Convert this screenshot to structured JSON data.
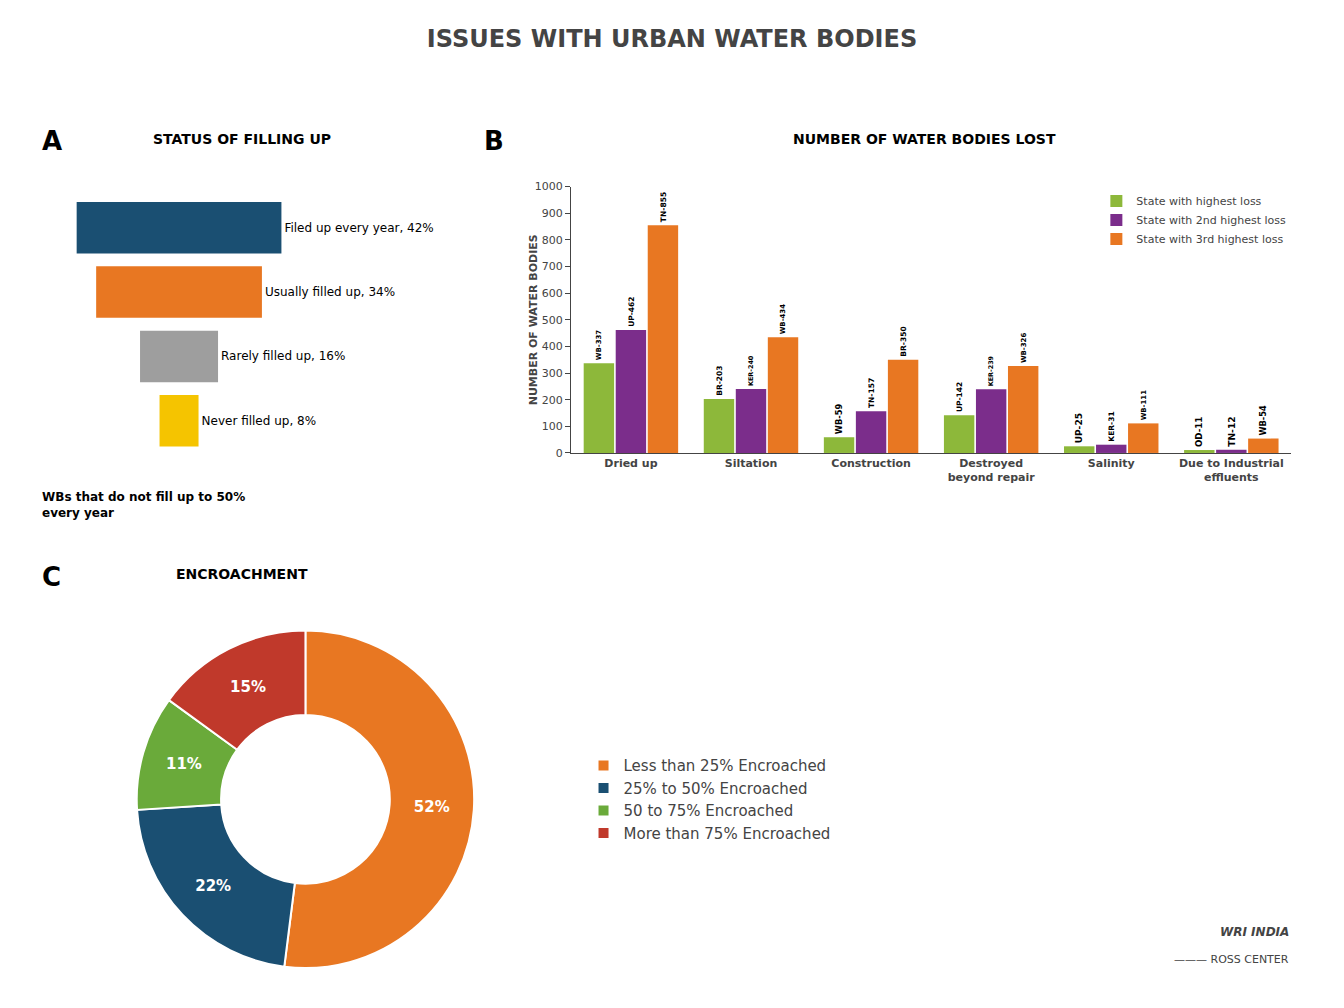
{
  "title": "ISSUES WITH URBAN WATER BODIES",
  "annotations": [
    "WRI INDIA",
    "——— ROSS CENTER"
  ],
  "chart_data": [
    {
      "type": "funnel",
      "label": "A",
      "subtitle": "STATUS OF FILLING UP",
      "values": [
        42,
        34,
        16,
        8
      ],
      "value_labels": [
        "Filed up every year, 42%",
        "Usually filled up, 34%",
        "Rarely filled up, 16%",
        "Never filled up, 8%"
      ],
      "colors": [
        "#1a4f72",
        "#e87722",
        "#9e9e9e",
        "#f5c400"
      ],
      "data_labels": true,
      "tick_labels": false,
      "annotations": [
        "WBs that do not fill up to 50%\nevery year"
      ]
    },
    {
      "type": "bar",
      "label": "B",
      "subtitle": "NUMBER OF WATER BODIES LOST",
      "ylabel": "NUMBER OF WATER BODIES",
      "categories": [
        "Dried up",
        "Siltation",
        "Construction",
        "Destroyed\nbeyond repair",
        "Salinity",
        "Due to Industrial\neffluents"
      ],
      "series": [
        {
          "name": "State with highest loss",
          "color": "#8db83a",
          "values": [
            337,
            203,
            59,
            142,
            25,
            11
          ],
          "value_labels": [
            "WB-337",
            "BR-203",
            "WB-59",
            "UP-142",
            "UP-25",
            "OD-11"
          ]
        },
        {
          "name": "State with 2nd highest loss",
          "color": "#7b2d8b",
          "values": [
            462,
            240,
            157,
            239,
            31,
            12
          ],
          "value_labels": [
            "UP-462",
            "KER-240",
            "TN-157",
            "KER-239",
            "KER-31",
            "TN-12"
          ]
        },
        {
          "name": "State with 3rd highest loss",
          "color": "#e87722",
          "values": [
            855,
            434,
            350,
            326,
            111,
            54
          ],
          "value_labels": [
            "TN-855",
            "WB-434",
            "BR-350",
            "WB-326",
            "WB-111",
            "WB-54"
          ]
        }
      ],
      "ylim": [
        0,
        1000
      ],
      "yticks": [
        0,
        100,
        200,
        300,
        400,
        500,
        600,
        700,
        800,
        900,
        1000
      ],
      "data_labels": true,
      "legend": "upper right",
      "grid": false
    },
    {
      "type": "pie",
      "label": "C",
      "subtitle": "ENCROACHMENT",
      "categories": [
        "Less than 25% Encroached",
        "25% to 50% Encroached",
        "50 to 75% Encroached",
        "More than 75% Encroached"
      ],
      "values": [
        52,
        22,
        11,
        15
      ],
      "value_labels": [
        "52%",
        "22%",
        "11%",
        "15%"
      ],
      "colors": [
        "#e87722",
        "#1a4f72",
        "#6aaa3a",
        "#c0392b"
      ],
      "data_labels": true,
      "legend": "right"
    }
  ]
}
